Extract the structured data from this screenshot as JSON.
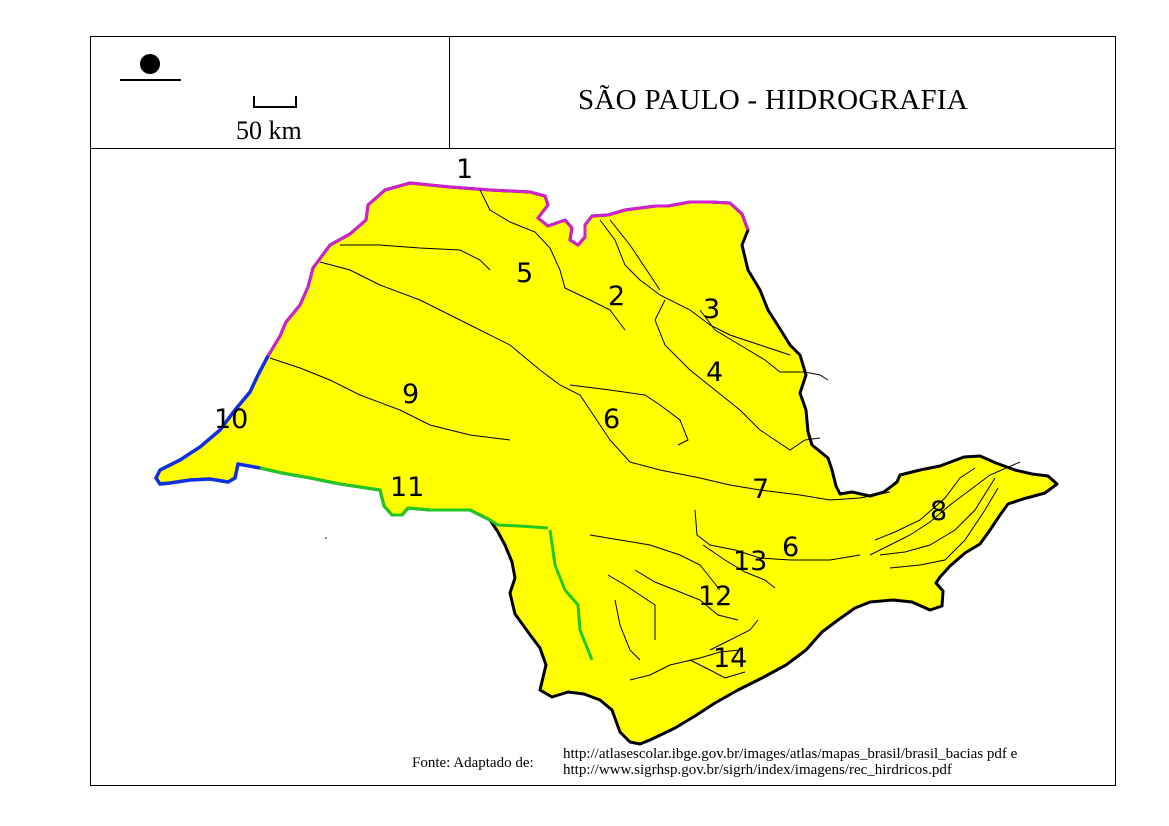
{
  "map": {
    "title": "SÃO PAULO - HIDROGRAFIA",
    "scale_label": "50 km",
    "symbols": {
      "north_marker": "north-dot-icon"
    },
    "colors": {
      "land": "#ffff00",
      "border": "#000000",
      "river": "#000000",
      "border_river_north": "#d020d0",
      "border_river_west": "#1030e0",
      "border_river_south": "#20c820"
    },
    "basin_labels": [
      "1",
      "2",
      "3",
      "4",
      "5",
      "6",
      "6",
      "7",
      "8",
      "9",
      "10",
      "11",
      "12",
      "13",
      "14"
    ]
  },
  "source": {
    "prefix": "Fonte: Adaptado de:",
    "url1": "http://atlasescolar.ibge.gov.br/images/atlas/mapas_brasil/brasil_bacias pdf  e",
    "url2": "http://www.sigrhsp.gov.br/sigrh/index/imagens/rec_hirdricos.pdf"
  }
}
